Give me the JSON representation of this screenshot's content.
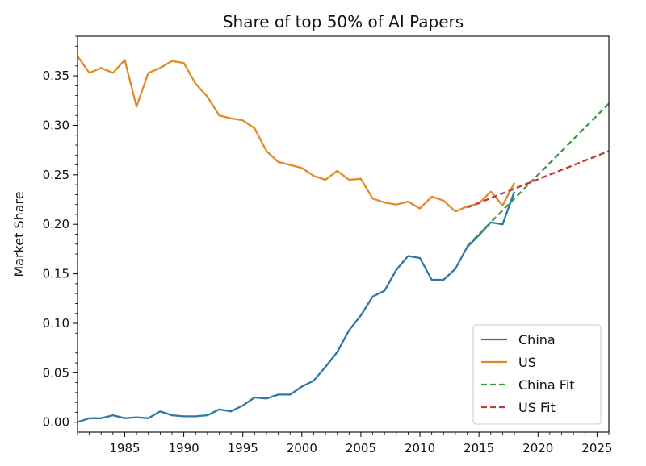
{
  "chart_data": {
    "type": "line",
    "title": "Share of top 50% of AI Papers",
    "xlabel": "",
    "ylabel": "Market Share",
    "xlim": [
      1981,
      2026
    ],
    "ylim": [
      -0.01,
      0.39
    ],
    "x_ticks": [
      1985,
      1990,
      1995,
      2000,
      2005,
      2010,
      2015,
      2020,
      2025
    ],
    "y_ticks": [
      "0.00",
      "0.05",
      "0.10",
      "0.15",
      "0.20",
      "0.25",
      "0.30",
      "0.35"
    ],
    "grid": false,
    "legend_position": "bottom-right",
    "series": [
      {
        "name": "China",
        "style": "solid",
        "color": "#2e78a6",
        "x": [
          1981,
          1982,
          1983,
          1984,
          1985,
          1986,
          1987,
          1988,
          1989,
          1990,
          1991,
          1992,
          1993,
          1994,
          1995,
          1996,
          1997,
          1998,
          1999,
          2000,
          2001,
          2002,
          2003,
          2004,
          2005,
          2006,
          2007,
          2008,
          2009,
          2010,
          2011,
          2012,
          2013,
          2014,
          2015,
          2016,
          2017,
          2018
        ],
        "values": [
          0.0,
          0.004,
          0.004,
          0.007,
          0.004,
          0.005,
          0.004,
          0.011,
          0.007,
          0.006,
          0.006,
          0.007,
          0.013,
          0.011,
          0.017,
          0.025,
          0.024,
          0.028,
          0.028,
          0.036,
          0.042,
          0.056,
          0.071,
          0.093,
          0.108,
          0.127,
          0.133,
          0.154,
          0.168,
          0.166,
          0.144,
          0.144,
          0.155,
          0.177,
          0.189,
          0.202,
          0.2,
          0.233
        ]
      },
      {
        "name": "US",
        "style": "solid",
        "color": "#e08a2a",
        "x": [
          1981,
          1982,
          1983,
          1984,
          1985,
          1986,
          1987,
          1988,
          1989,
          1990,
          1991,
          1992,
          1993,
          1994,
          1995,
          1996,
          1997,
          1998,
          1999,
          2000,
          2001,
          2002,
          2003,
          2004,
          2005,
          2006,
          2007,
          2008,
          2009,
          2010,
          2011,
          2012,
          2013,
          2014,
          2015,
          2016,
          2017,
          2018
        ],
        "values": [
          0.37,
          0.353,
          0.358,
          0.353,
          0.366,
          0.319,
          0.353,
          0.358,
          0.365,
          0.363,
          0.342,
          0.329,
          0.31,
          0.307,
          0.305,
          0.297,
          0.274,
          0.263,
          0.26,
          0.257,
          0.249,
          0.245,
          0.254,
          0.245,
          0.246,
          0.226,
          0.222,
          0.22,
          0.223,
          0.216,
          0.228,
          0.224,
          0.213,
          0.218,
          0.221,
          0.233,
          0.219,
          0.242
        ]
      },
      {
        "name": "China Fit",
        "style": "dashed",
        "color": "#3d9a3d",
        "x": [
          2014,
          2026
        ],
        "values": [
          0.178,
          0.322
        ]
      },
      {
        "name": "US Fit",
        "style": "dashed",
        "color": "#c03a3a",
        "x": [
          2014,
          2026
        ],
        "values": [
          0.217,
          0.274
        ]
      }
    ]
  }
}
